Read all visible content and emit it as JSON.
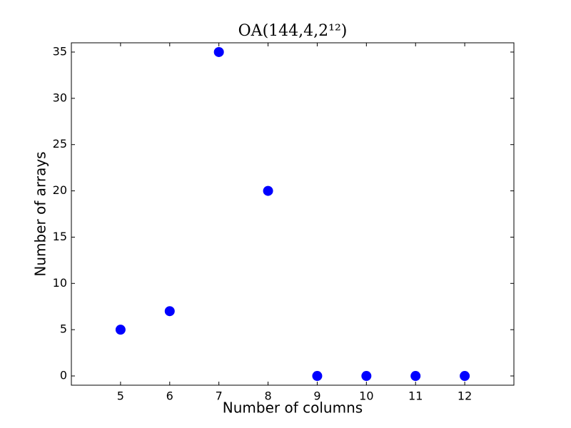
{
  "chart_data": {
    "type": "scatter",
    "title": "OA(144,4,2¹²)",
    "x_label": "Number of columns",
    "y_label": "Number of arrays",
    "x": [
      5,
      6,
      7,
      8,
      9,
      10,
      11,
      12
    ],
    "values": [
      5,
      7,
      35,
      20,
      0,
      0,
      0,
      0
    ],
    "color": "#0000ff",
    "xlim": [
      4,
      13
    ],
    "xticks": [
      5,
      6,
      7,
      8,
      9,
      10,
      11,
      12
    ],
    "ylim": [
      -1,
      36
    ],
    "yticks": [
      0,
      5,
      10,
      15,
      20,
      25,
      30,
      35
    ],
    "grid": false
  }
}
